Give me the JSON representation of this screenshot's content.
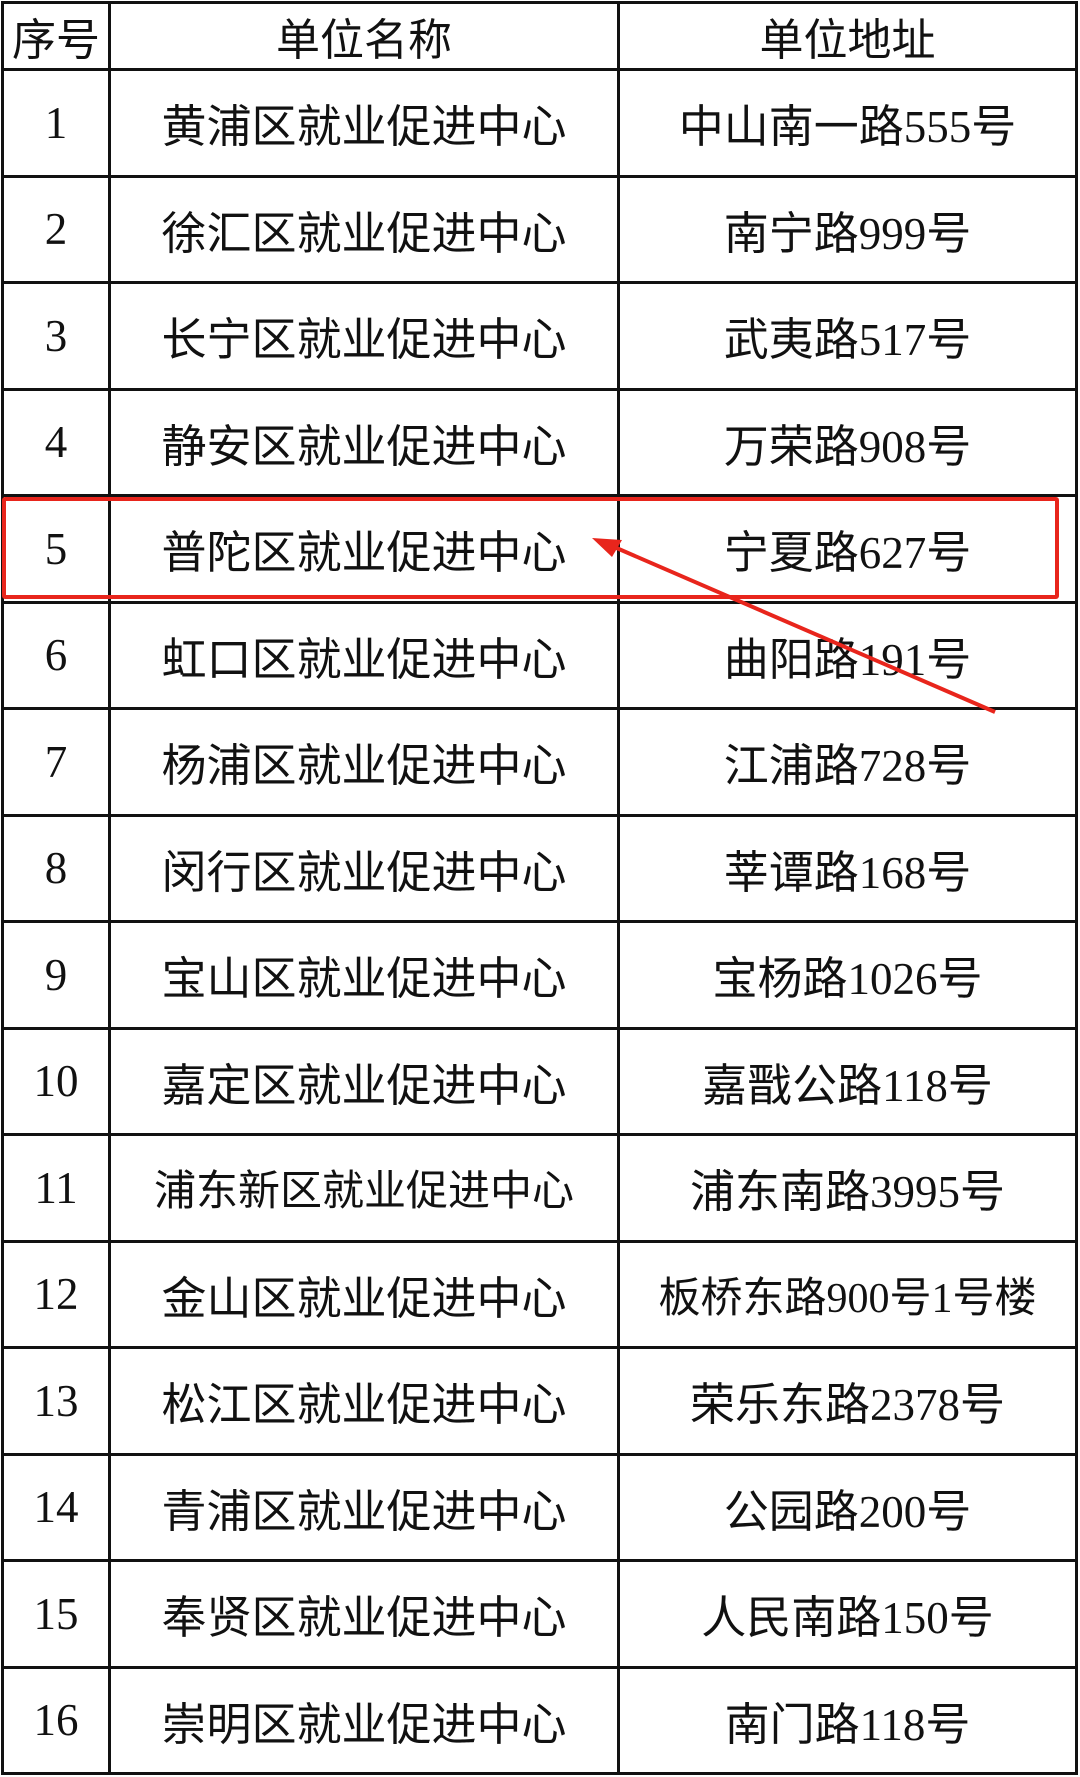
{
  "headers": [
    "序号",
    "单位名称",
    "单位地址"
  ],
  "rows": [
    {
      "no": "1",
      "name": "黄浦区就业促进中心",
      "address": "中山南一路555号"
    },
    {
      "no": "2",
      "name": "徐汇区就业促进中心",
      "address": "南宁路999号"
    },
    {
      "no": "3",
      "name": "长宁区就业促进中心",
      "address": "武夷路517号"
    },
    {
      "no": "4",
      "name": "静安区就业促进中心",
      "address": "万荣路908号"
    },
    {
      "no": "5",
      "name": "普陀区就业促进中心",
      "address": "宁夏路627号"
    },
    {
      "no": "6",
      "name": "虹口区就业促进中心",
      "address": "曲阳路191号"
    },
    {
      "no": "7",
      "name": "杨浦区就业促进中心",
      "address": "江浦路728号"
    },
    {
      "no": "8",
      "name": "闵行区就业促进中心",
      "address": "莘谭路168号"
    },
    {
      "no": "9",
      "name": "宝山区就业促进中心",
      "address": "宝杨路1026号"
    },
    {
      "no": "10",
      "name": "嘉定区就业促进中心",
      "address": "嘉戬公路118号"
    },
    {
      "no": "11",
      "name": "浦东新区就业促进中心",
      "address": "浦东南路3995号"
    },
    {
      "no": "12",
      "name": "金山区就业促进中心",
      "address": "板桥东路900号1号楼"
    },
    {
      "no": "13",
      "name": "松江区就业促进中心",
      "address": "荣乐东路2378号"
    },
    {
      "no": "14",
      "name": "青浦区就业促进中心",
      "address": "公园路200号"
    },
    {
      "no": "15",
      "name": "奉贤区就业促进中心",
      "address": "人民南路150号"
    },
    {
      "no": "16",
      "name": "崇明区就业促进中心",
      "address": "南门路118号"
    }
  ],
  "highlight": {
    "row_no": "5",
    "color": "#e8251c"
  }
}
